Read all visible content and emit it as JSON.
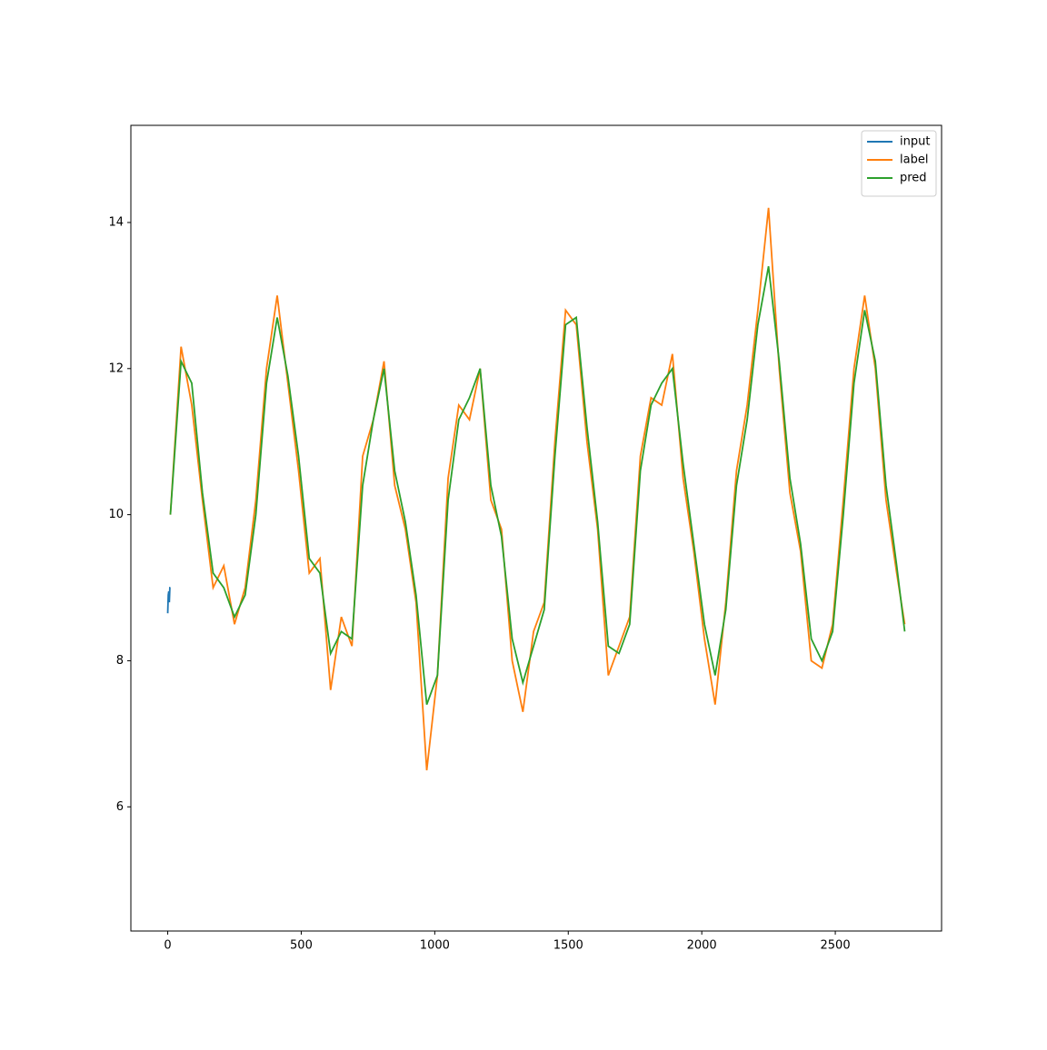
{
  "chart_data": {
    "type": "line",
    "xlim": [
      -138,
      2898
    ],
    "xticks": [
      0,
      500,
      1000,
      1500,
      2000,
      2500
    ],
    "ylim": [
      4.3,
      15.33
    ],
    "yticks": [
      6,
      8,
      10,
      12,
      14
    ],
    "legend": "upper right",
    "series": [
      {
        "name": "input",
        "color": "#1f77b4",
        "x": [
          0,
          2,
          4,
          6,
          8,
          10
        ],
        "values": [
          8.65,
          8.9,
          8.95,
          8.8,
          9.0,
          9.0
        ]
      },
      {
        "name": "label",
        "color": "#ff7f0e",
        "x": [
          10,
          50,
          90,
          130,
          170,
          210,
          250,
          290,
          330,
          370,
          410,
          450,
          490,
          530,
          570,
          610,
          650,
          690,
          730,
          770,
          810,
          850,
          890,
          930,
          970,
          1010,
          1050,
          1090,
          1130,
          1170,
          1210,
          1250,
          1290,
          1330,
          1370,
          1410,
          1450,
          1490,
          1530,
          1570,
          1610,
          1650,
          1690,
          1730,
          1770,
          1810,
          1850,
          1890,
          1930,
          1970,
          2010,
          2050,
          2090,
          2130,
          2170,
          2210,
          2250,
          2290,
          2330,
          2370,
          2410,
          2450,
          2490,
          2530,
          2570,
          2610,
          2650,
          2690,
          2730,
          2760
        ],
        "values": [
          10.0,
          12.3,
          11.5,
          10.2,
          9.0,
          9.3,
          8.5,
          9.0,
          10.2,
          12.0,
          13.0,
          11.8,
          10.6,
          9.2,
          9.4,
          7.6,
          8.6,
          8.2,
          10.8,
          11.3,
          12.1,
          10.4,
          9.8,
          8.8,
          6.5,
          7.8,
          10.5,
          11.5,
          11.3,
          12.0,
          10.2,
          9.8,
          8.0,
          7.3,
          8.4,
          8.8,
          11.0,
          12.8,
          12.6,
          11.0,
          9.8,
          7.8,
          8.2,
          8.6,
          10.8,
          11.6,
          11.5,
          12.2,
          10.5,
          9.5,
          8.3,
          7.4,
          8.8,
          10.6,
          11.5,
          12.8,
          14.2,
          12.0,
          10.3,
          9.5,
          8.0,
          7.9,
          8.5,
          10.2,
          12.0,
          13.0,
          12.0,
          10.2,
          9.2,
          8.5
        ]
      },
      {
        "name": "pred",
        "color": "#2ca02c",
        "x": [
          10,
          50,
          90,
          130,
          170,
          210,
          250,
          290,
          330,
          370,
          410,
          450,
          490,
          530,
          570,
          610,
          650,
          690,
          730,
          770,
          810,
          850,
          890,
          930,
          970,
          1010,
          1050,
          1090,
          1130,
          1170,
          1210,
          1250,
          1290,
          1330,
          1370,
          1410,
          1450,
          1490,
          1530,
          1570,
          1610,
          1650,
          1690,
          1730,
          1770,
          1810,
          1850,
          1890,
          1930,
          1970,
          2010,
          2050,
          2090,
          2130,
          2170,
          2210,
          2250,
          2290,
          2330,
          2370,
          2410,
          2450,
          2490,
          2530,
          2570,
          2610,
          2650,
          2690,
          2730,
          2760
        ],
        "values": [
          10.0,
          12.1,
          11.8,
          10.3,
          9.2,
          9.0,
          8.6,
          8.9,
          10.0,
          11.8,
          12.7,
          11.9,
          10.8,
          9.4,
          9.2,
          8.1,
          8.4,
          8.3,
          10.4,
          11.3,
          12.0,
          10.6,
          9.9,
          8.9,
          7.4,
          7.8,
          10.2,
          11.3,
          11.6,
          12.0,
          10.4,
          9.7,
          8.3,
          7.7,
          8.2,
          8.7,
          10.8,
          12.6,
          12.7,
          11.2,
          9.9,
          8.2,
          8.1,
          8.5,
          10.6,
          11.5,
          11.8,
          12.0,
          10.7,
          9.6,
          8.5,
          7.8,
          8.7,
          10.4,
          11.3,
          12.6,
          13.4,
          12.1,
          10.5,
          9.6,
          8.3,
          8.0,
          8.4,
          10.0,
          11.8,
          12.8,
          12.1,
          10.4,
          9.3,
          8.4
        ]
      }
    ]
  }
}
